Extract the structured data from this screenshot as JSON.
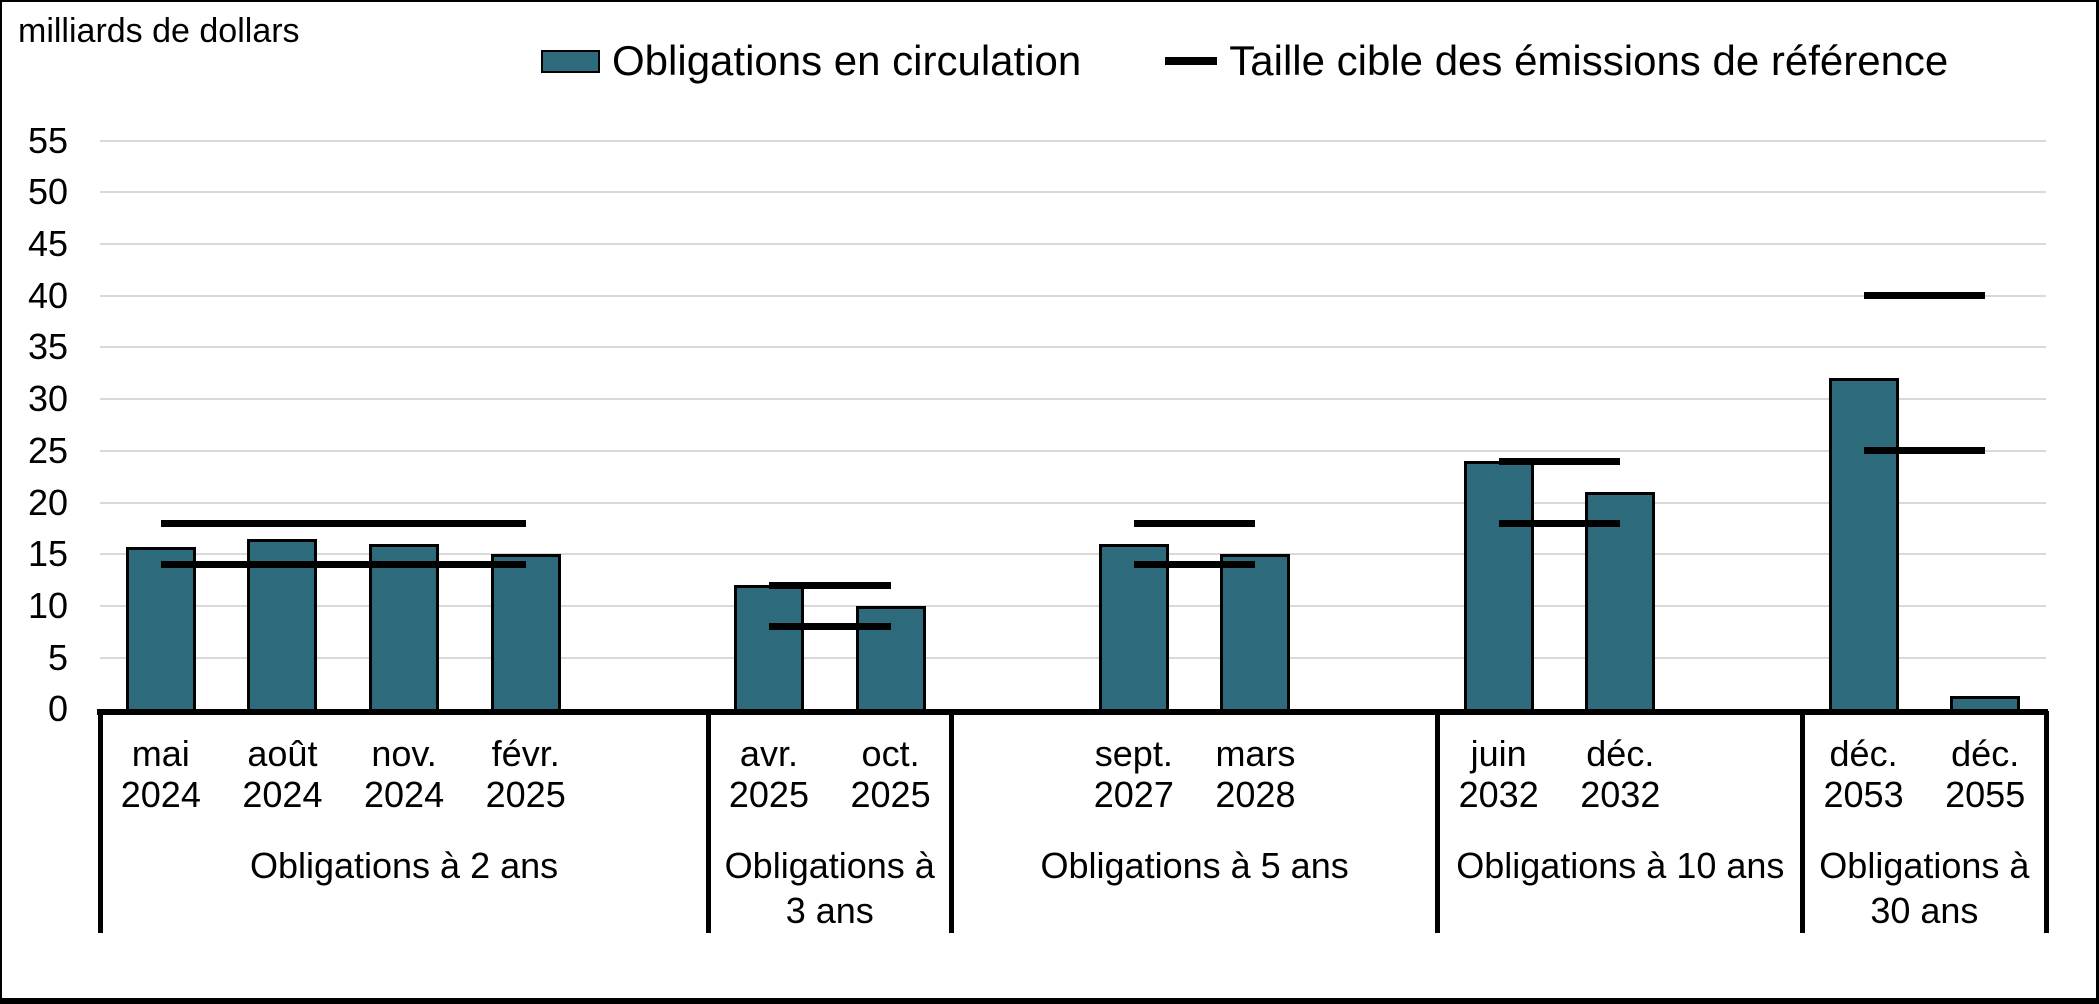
{
  "figure": {
    "axis_title": "milliards de dollars",
    "legend": [
      {
        "type": "bar-swatch",
        "label": "Obligations en circulation"
      },
      {
        "type": "line-swatch",
        "label": "Taille cible des émissions de référence"
      }
    ]
  },
  "colors": {
    "bar_fill": "#2D6A7B",
    "bar_border": "#000000",
    "target_line": "#000000",
    "gridline": "#D9D9D9",
    "frame": "#000000"
  },
  "chart_data": {
    "type": "bar",
    "title": "milliards de dollars",
    "ylabel": "milliards de dollars",
    "ylim": [
      0,
      55
    ],
    "ytick_step": 5,
    "grid": true,
    "legend_entries": [
      "Obligations en circulation",
      "Taille cible des émissions de référence"
    ],
    "series_note": "bars = Obligations en circulation; horizontal black lines = Taille cible des émissions de référence (min/max range per group)",
    "groups": [
      {
        "label": "Obligations à 2 ans",
        "bars": [
          {
            "month": "mai",
            "year": "2024",
            "value": 15.7
          },
          {
            "month": "août",
            "year": "2024",
            "value": 16.5
          },
          {
            "month": "nov.",
            "year": "2024",
            "value": 16
          },
          {
            "month": "févr.",
            "year": "2025",
            "value": 15
          }
        ],
        "target_min": 14,
        "target_max": 18
      },
      {
        "label": "Obligations à 3 ans",
        "bars": [
          {
            "month": "avr.",
            "year": "2025",
            "value": 12
          },
          {
            "month": "oct.",
            "year": "2025",
            "value": 10
          }
        ],
        "target_min": 8,
        "target_max": 12
      },
      {
        "label": "Obligations à 5 ans",
        "bars": [
          {
            "month": "sept.",
            "year": "2027",
            "value": 16
          },
          {
            "month": "mars",
            "year": "2028",
            "value": 15
          }
        ],
        "target_min": 14,
        "target_max": 18
      },
      {
        "label": "Obligations à 10 ans",
        "bars": [
          {
            "month": "juin",
            "year": "2032",
            "value": 24
          },
          {
            "month": "déc.",
            "year": "2032",
            "value": 21
          }
        ],
        "target_min": 18,
        "target_max": 24
      },
      {
        "label": "Obligations à 30 ans",
        "bars": [
          {
            "month": "déc.",
            "year": "2053",
            "value": 32
          },
          {
            "month": "déc.",
            "year": "2055",
            "value": 1.3
          }
        ],
        "target_min": 25,
        "target_max": 40
      }
    ]
  }
}
